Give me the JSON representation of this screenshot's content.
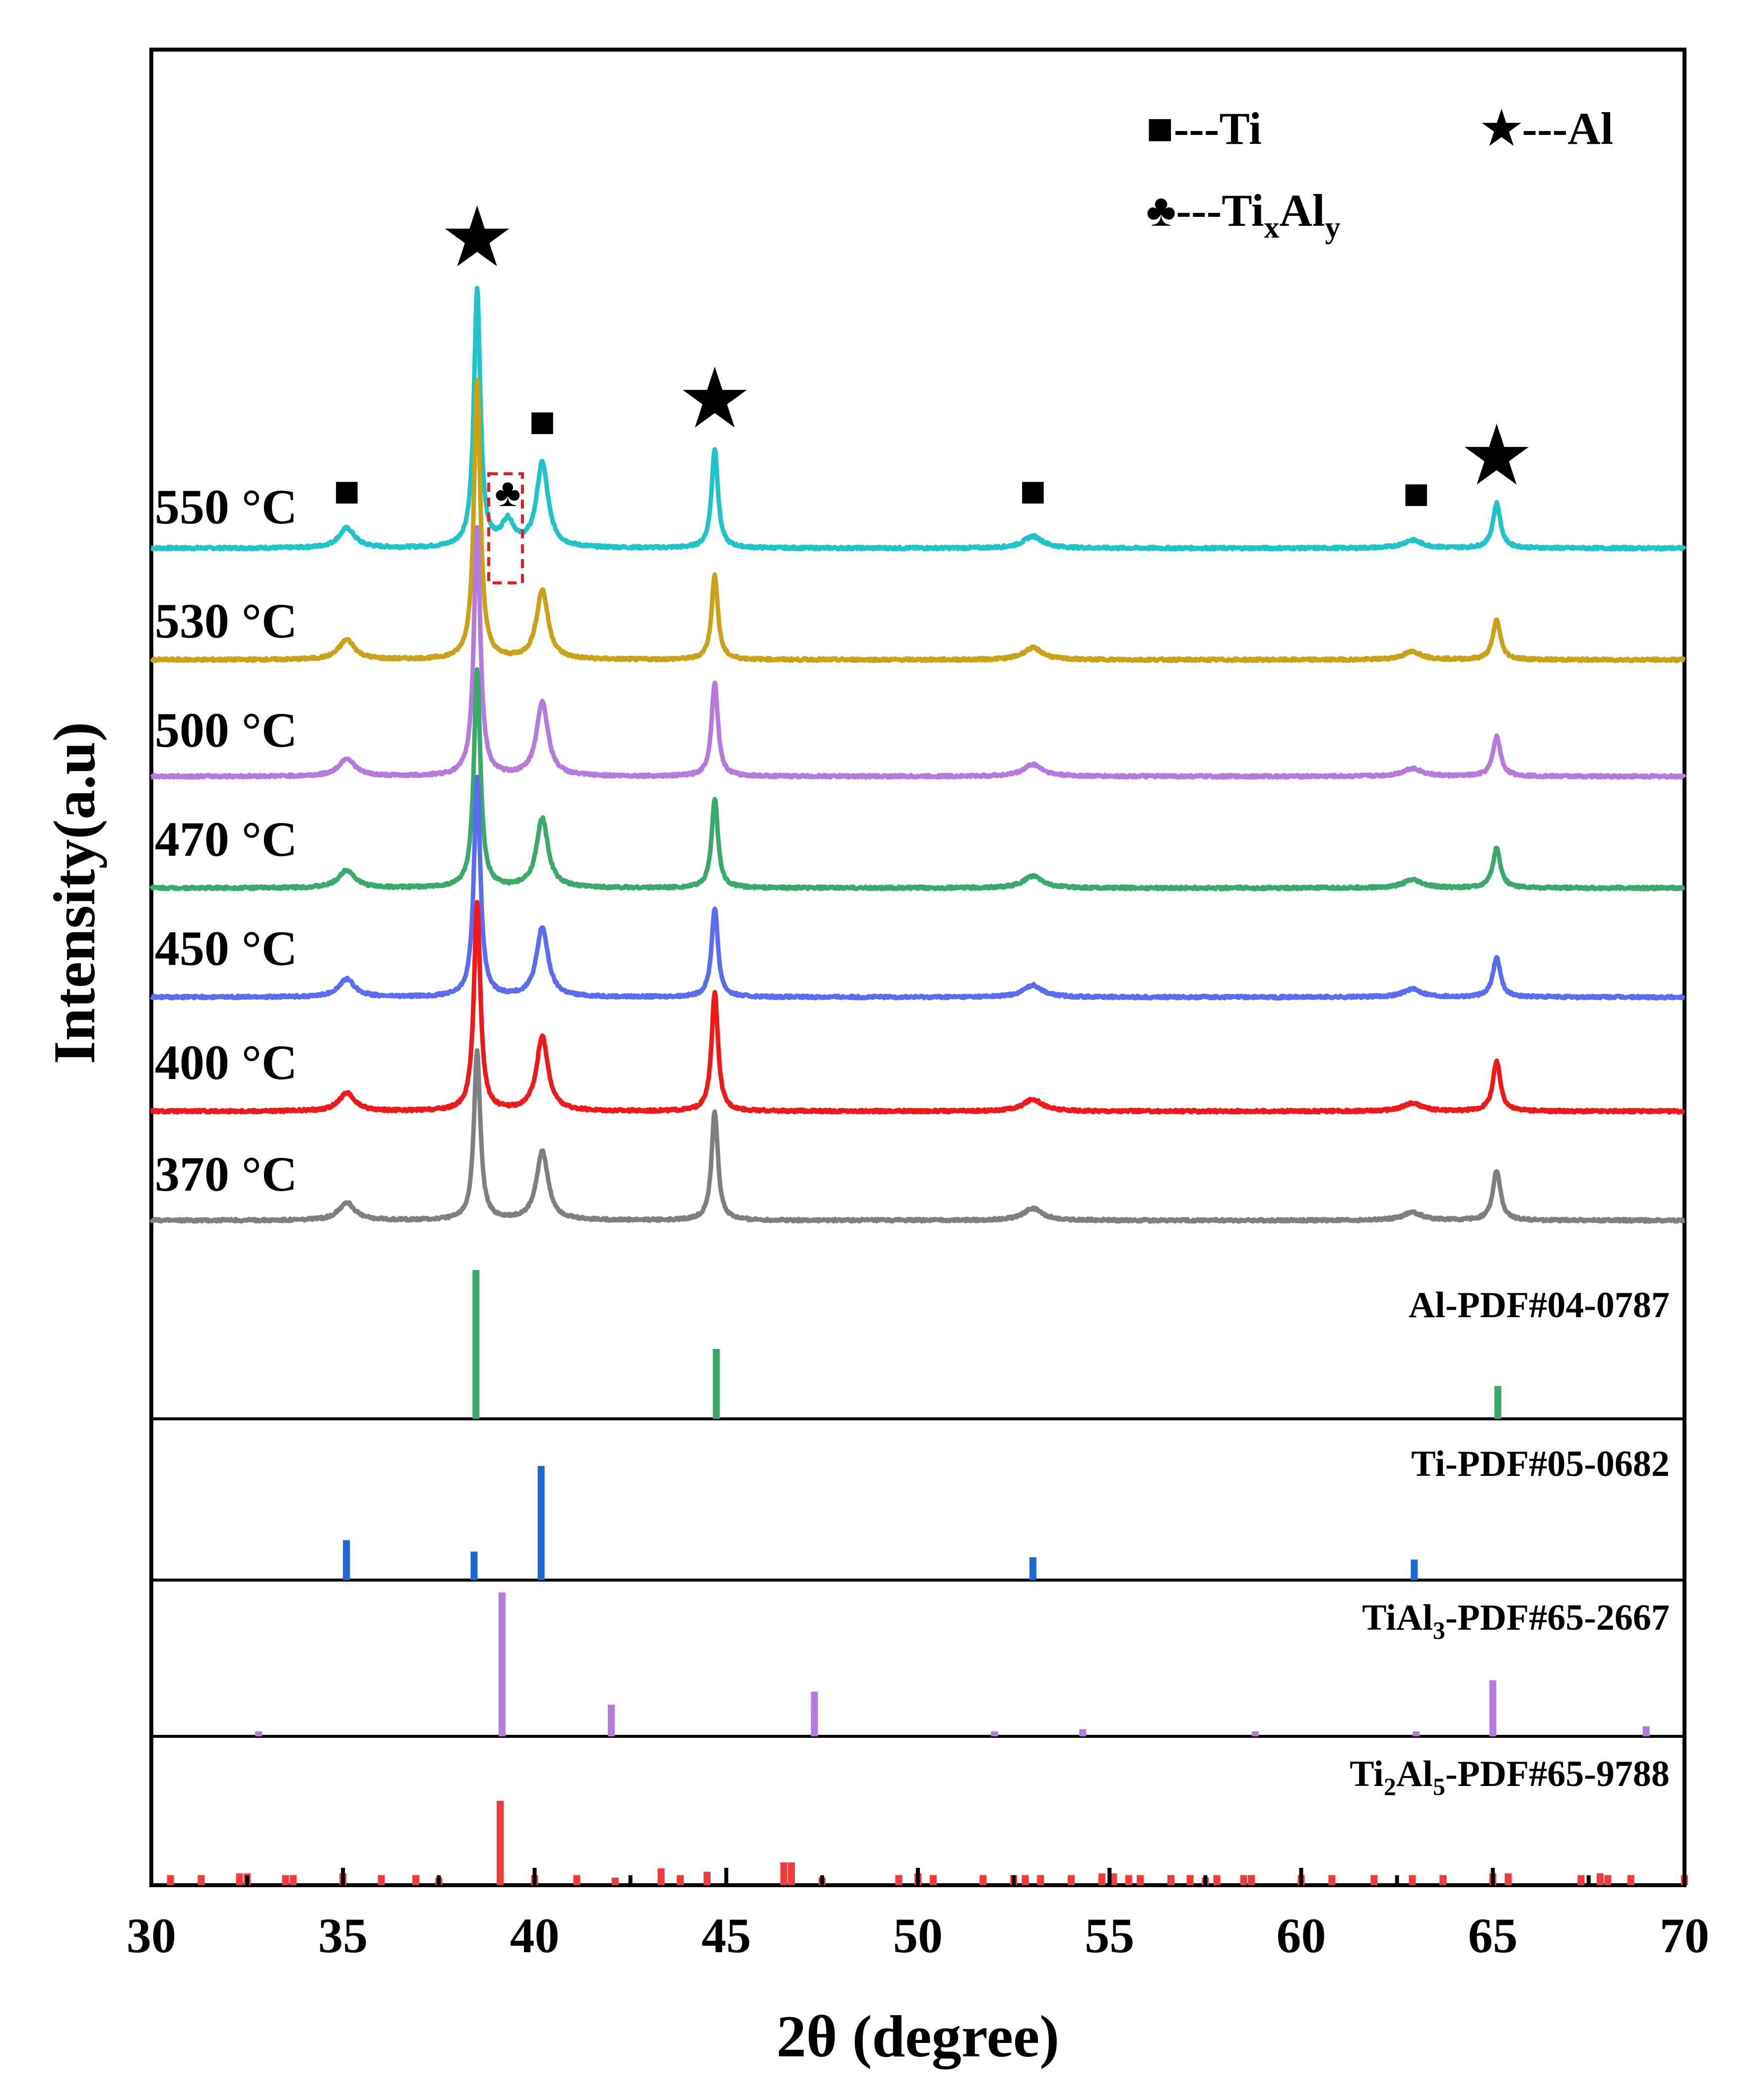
{
  "chart_data": {
    "type": "line",
    "title": "",
    "xlabel": "2θ (degree)",
    "ylabel": "Intensity(a.u)",
    "xlim": [
      30,
      70
    ],
    "xticks": [
      30,
      35,
      40,
      45,
      50,
      55,
      60,
      65,
      70
    ],
    "series": [
      {
        "name": "550 °C",
        "color": "#1fc4c9",
        "label": "550 °C",
        "peaks": [
          [
            35.1,
            2,
            0.25
          ],
          [
            38.5,
            26,
            0.1
          ],
          [
            39.3,
            2.5,
            0.2
          ],
          [
            40.2,
            8.5,
            0.18
          ],
          [
            44.7,
            10,
            0.1
          ],
          [
            53.0,
            1.2,
            0.3
          ],
          [
            62.9,
            0.8,
            0.3
          ],
          [
            65.1,
            4.5,
            0.12
          ]
        ]
      },
      {
        "name": "530 °C",
        "color": "#c9a21a",
        "label": "530 °C",
        "peaks": [
          [
            35.1,
            2,
            0.25
          ],
          [
            38.5,
            28,
            0.1
          ],
          [
            40.2,
            7,
            0.18
          ],
          [
            44.7,
            8.5,
            0.1
          ],
          [
            53.0,
            1.2,
            0.3
          ],
          [
            62.9,
            0.8,
            0.3
          ],
          [
            65.1,
            4,
            0.12
          ]
        ]
      },
      {
        "name": "500 °C",
        "color": "#b57bdc",
        "label": "500 °C",
        "peaks": [
          [
            35.1,
            1.8,
            0.25
          ],
          [
            38.5,
            25,
            0.1
          ],
          [
            40.2,
            7.5,
            0.18
          ],
          [
            44.7,
            9.5,
            0.1
          ],
          [
            53.0,
            1.2,
            0.3
          ],
          [
            62.9,
            0.8,
            0.3
          ],
          [
            65.1,
            4,
            0.12
          ]
        ]
      },
      {
        "name": "470 °C",
        "color": "#3aaa6a",
        "label": "470 °C",
        "peaks": [
          [
            35.1,
            1.8,
            0.25
          ],
          [
            38.5,
            22,
            0.1
          ],
          [
            40.2,
            7,
            0.18
          ],
          [
            44.7,
            9,
            0.1
          ],
          [
            53.0,
            1.2,
            0.3
          ],
          [
            62.9,
            0.8,
            0.3
          ],
          [
            65.1,
            4,
            0.12
          ]
        ]
      },
      {
        "name": "450 °C",
        "color": "#5c6cf0",
        "label": "450 °C",
        "peaks": [
          [
            35.1,
            1.8,
            0.25
          ],
          [
            38.5,
            22,
            0.1
          ],
          [
            40.2,
            7,
            0.18
          ],
          [
            44.7,
            9,
            0.1
          ],
          [
            53.0,
            1.2,
            0.3
          ],
          [
            62.9,
            0.8,
            0.3
          ],
          [
            65.1,
            4,
            0.12
          ]
        ]
      },
      {
        "name": "400 °C",
        "color": "#f01818",
        "label": "400 °C",
        "peaks": [
          [
            35.1,
            1.8,
            0.25
          ],
          [
            38.5,
            21,
            0.1
          ],
          [
            40.2,
            7.5,
            0.18
          ],
          [
            44.7,
            12,
            0.1
          ],
          [
            53.0,
            1.2,
            0.3
          ],
          [
            62.9,
            0.8,
            0.3
          ],
          [
            65.1,
            5,
            0.12
          ]
        ]
      },
      {
        "name": "370 °C",
        "color": "#7f7f7f",
        "label": "370 °C",
        "peaks": [
          [
            35.1,
            1.8,
            0.25
          ],
          [
            38.5,
            17,
            0.1
          ],
          [
            40.2,
            7,
            0.18
          ],
          [
            44.7,
            11,
            0.1
          ],
          [
            53.0,
            1.2,
            0.3
          ],
          [
            62.9,
            0.8,
            0.3
          ],
          [
            65.1,
            5,
            0.12
          ]
        ]
      }
    ],
    "legend": {
      "ti": "■---Ti",
      "al": "★---Al",
      "tixaly_prefix": "♣---Ti",
      "tixaly_sub1": "x",
      "tixaly_mid": "Al",
      "tixaly_sub2": "y"
    },
    "markers": [
      {
        "symbol": "★",
        "x": 38.5,
        "phase": "Al"
      },
      {
        "symbol": "★",
        "x": 44.7,
        "phase": "Al"
      },
      {
        "symbol": "★",
        "x": 65.1,
        "phase": "Al"
      },
      {
        "symbol": "■",
        "x": 35.1,
        "phase": "Ti"
      },
      {
        "symbol": "■",
        "x": 40.2,
        "phase": "Ti"
      },
      {
        "symbol": "■",
        "x": 53.0,
        "phase": "Ti"
      },
      {
        "symbol": "■",
        "x": 63.0,
        "phase": "Ti"
      },
      {
        "symbol": "♣",
        "x": 39.3,
        "phase": "TixAly"
      }
    ],
    "reference_panels": [
      {
        "label": "Al-PDF#04-0787",
        "color": "#3aaa6a",
        "sticks": [
          [
            38.47,
            100
          ],
          [
            44.74,
            47
          ],
          [
            65.13,
            22
          ]
        ]
      },
      {
        "label": "Ti-PDF#05-0682",
        "color": "#1f66d6",
        "sticks": [
          [
            35.09,
            35
          ],
          [
            38.42,
            25
          ],
          [
            40.17,
            100
          ],
          [
            53.0,
            20
          ],
          [
            62.95,
            18
          ]
        ]
      },
      {
        "label_prefix": "TiAl",
        "label_sub": "3",
        "label_suffix": "-PDF#65-2667",
        "color": "#b57bdc",
        "sticks": [
          [
            32.8,
            3
          ],
          [
            39.15,
            100
          ],
          [
            42.0,
            22
          ],
          [
            47.3,
            31
          ],
          [
            52.0,
            3
          ],
          [
            54.3,
            5
          ],
          [
            58.8,
            3
          ],
          [
            63.0,
            3
          ],
          [
            65.0,
            39
          ],
          [
            69.0,
            7
          ]
        ]
      },
      {
        "label_prefix": "Ti",
        "label_sub": "2",
        "label_suffix": "Al",
        "label_sub2": "5",
        "label_suffix2": "-PDF#65-9788",
        "color": "#f03c3c",
        "sticks": [
          [
            30.5,
            12
          ],
          [
            31.3,
            12
          ],
          [
            32.3,
            14
          ],
          [
            32.5,
            14
          ],
          [
            33.5,
            12
          ],
          [
            33.7,
            12
          ],
          [
            35.0,
            14
          ],
          [
            36.0,
            12
          ],
          [
            36.9,
            12
          ],
          [
            37.5,
            9
          ],
          [
            39.1,
            100
          ],
          [
            40.0,
            12
          ],
          [
            41.1,
            12
          ],
          [
            42.1,
            9
          ],
          [
            43.3,
            20
          ],
          [
            43.8,
            12
          ],
          [
            44.5,
            16
          ],
          [
            46.5,
            27
          ],
          [
            46.7,
            27
          ],
          [
            47.5,
            9
          ],
          [
            49.5,
            12
          ],
          [
            50.0,
            14
          ],
          [
            50.4,
            12
          ],
          [
            51.7,
            12
          ],
          [
            52.5,
            12
          ],
          [
            52.8,
            12
          ],
          [
            53.2,
            12
          ],
          [
            54.0,
            12
          ],
          [
            54.8,
            14
          ],
          [
            55.1,
            14
          ],
          [
            55.5,
            12
          ],
          [
            55.8,
            12
          ],
          [
            56.6,
            12
          ],
          [
            57.1,
            12
          ],
          [
            57.5,
            9
          ],
          [
            57.8,
            12
          ],
          [
            58.5,
            12
          ],
          [
            58.7,
            12
          ],
          [
            60.0,
            12
          ],
          [
            60.8,
            12
          ],
          [
            61.9,
            12
          ],
          [
            62.9,
            12
          ],
          [
            63.7,
            12
          ],
          [
            65.0,
            14
          ],
          [
            65.4,
            14
          ],
          [
            67.3,
            12
          ],
          [
            67.8,
            14
          ],
          [
            68.0,
            12
          ],
          [
            68.6,
            12
          ],
          [
            70.0,
            12
          ]
        ]
      }
    ]
  }
}
